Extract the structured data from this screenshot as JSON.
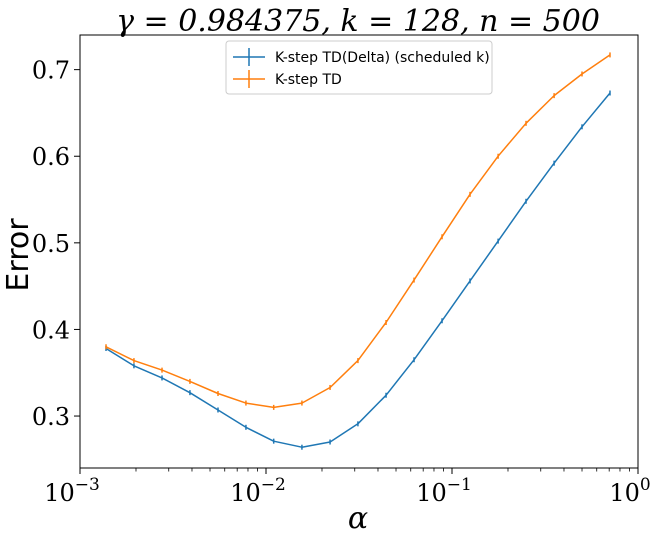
{
  "chart_data": {
    "type": "line",
    "title": "γ = 0.984375, k = 128, n = 500",
    "xlabel": "α",
    "ylabel": "Error",
    "xscale": "log",
    "xlim": [
      0.001,
      1
    ],
    "ylim": [
      0.24,
      0.74
    ],
    "x_ticks": [
      {
        "value": 0.001,
        "base": "10",
        "exp": "−3"
      },
      {
        "value": 0.01,
        "base": "10",
        "exp": "−2"
      },
      {
        "value": 0.1,
        "base": "10",
        "exp": "−1"
      },
      {
        "value": 1,
        "base": "10",
        "exp": "0"
      }
    ],
    "y_ticks": [
      {
        "value": 0.3,
        "label": "0.3"
      },
      {
        "value": 0.4,
        "label": "0.4"
      },
      {
        "value": 0.5,
        "label": "0.5"
      },
      {
        "value": 0.6,
        "label": "0.6"
      },
      {
        "value": 0.7,
        "label": "0.7"
      }
    ],
    "grid": false,
    "legend_position": "top-center",
    "series": [
      {
        "name": "K-step TD(Delta) (scheduled k)",
        "color": "#1f77b4",
        "x": [
          0.00138,
          0.00195,
          0.00276,
          0.0039,
          0.00552,
          0.0078,
          0.011,
          0.0156,
          0.0221,
          0.0312,
          0.0442,
          0.0625,
          0.0884,
          0.125,
          0.177,
          0.25,
          0.354,
          0.5,
          0.707
        ],
        "y": [
          0.378,
          0.358,
          0.344,
          0.327,
          0.307,
          0.287,
          0.271,
          0.264,
          0.27,
          0.291,
          0.324,
          0.365,
          0.41,
          0.456,
          0.502,
          0.548,
          0.592,
          0.634,
          0.673
        ]
      },
      {
        "name": "K-step TD",
        "color": "#ff7f0e",
        "x": [
          0.00138,
          0.00195,
          0.00276,
          0.0039,
          0.00552,
          0.0078,
          0.011,
          0.0156,
          0.0221,
          0.0312,
          0.0442,
          0.0625,
          0.0884,
          0.125,
          0.177,
          0.25,
          0.354,
          0.5,
          0.707
        ],
        "y": [
          0.38,
          0.364,
          0.353,
          0.34,
          0.326,
          0.315,
          0.31,
          0.315,
          0.333,
          0.364,
          0.408,
          0.457,
          0.507,
          0.556,
          0.6,
          0.638,
          0.67,
          0.695,
          0.717
        ]
      }
    ]
  }
}
